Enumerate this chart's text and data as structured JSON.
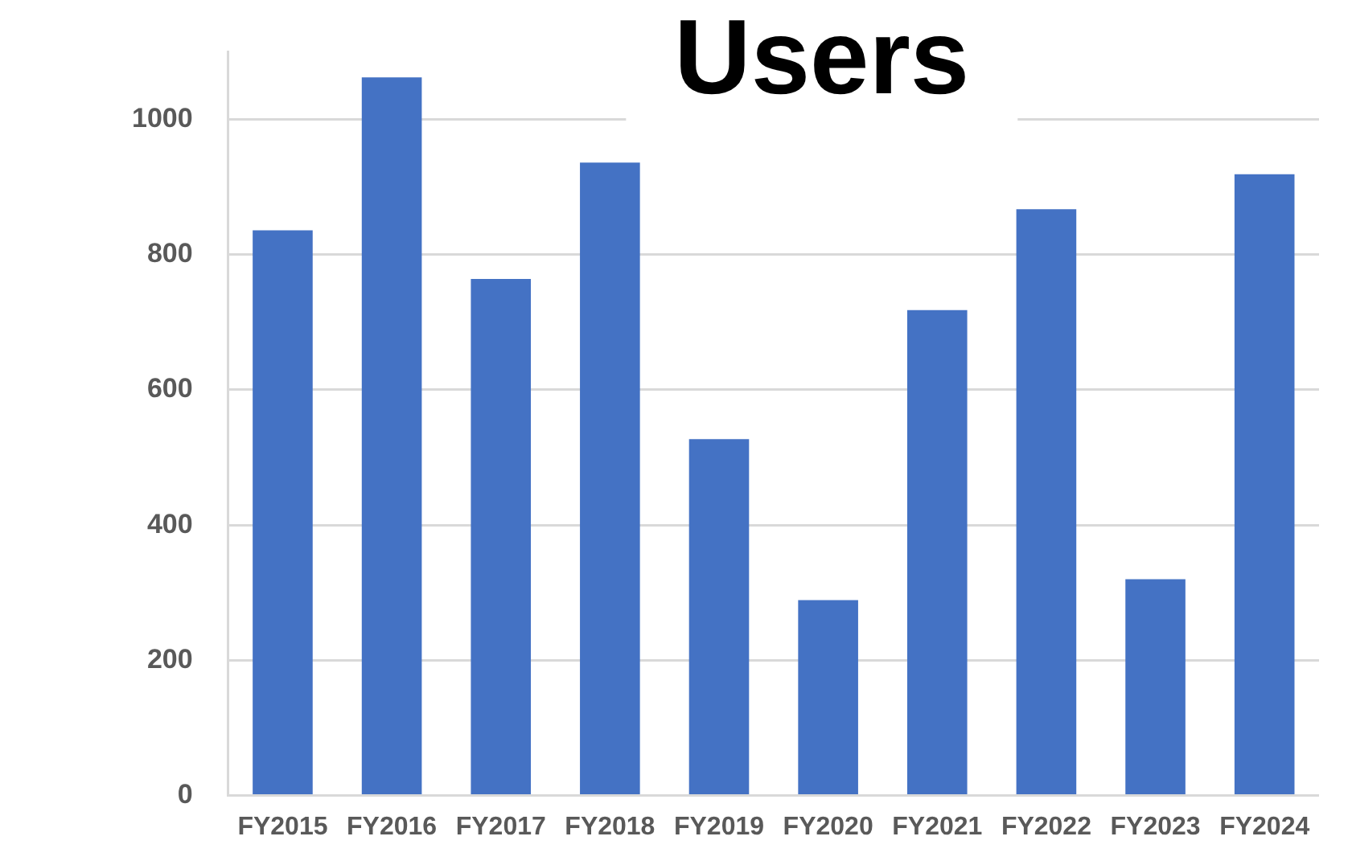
{
  "chart_data": {
    "type": "bar",
    "title": "Users",
    "categories": [
      "FY2015",
      "FY2016",
      "FY2017",
      "FY2018",
      "FY2019",
      "FY2020",
      "FY2021",
      "FY2022",
      "FY2023",
      "FY2024"
    ],
    "values": [
      836,
      1062,
      764,
      936,
      527,
      289,
      718,
      867,
      320,
      919
    ],
    "color": "#4472c4",
    "ylim": [
      0,
      1100
    ],
    "yticks": [
      0,
      200,
      400,
      600,
      800,
      1000
    ],
    "grid": "y",
    "legend": false
  }
}
